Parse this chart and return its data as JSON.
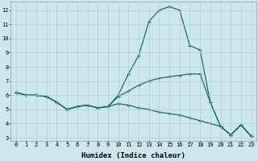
{
  "background_color": "#cde8ec",
  "grid_color": "#aacdd4",
  "line_color": "#1a6b6a",
  "marker": "+",
  "marker_size": 3,
  "marker_lw": 0.8,
  "line_width": 0.9,
  "xlabel": "Humidex (Indice chaleur)",
  "xlabel_fontsize": 6.5,
  "xlim": [
    -0.5,
    23.5
  ],
  "ylim": [
    2.8,
    12.6
  ],
  "yticks": [
    3,
    4,
    5,
    6,
    7,
    8,
    9,
    10,
    11,
    12
  ],
  "xticks": [
    0,
    1,
    2,
    3,
    4,
    5,
    6,
    7,
    8,
    9,
    10,
    11,
    12,
    13,
    14,
    15,
    16,
    17,
    18,
    19,
    20,
    21,
    22,
    23
  ],
  "tick_fontsize": 5.0,
  "series": [
    {
      "x": [
        0,
        1,
        2,
        3,
        4,
        5,
        6,
        7,
        8,
        9,
        10,
        11,
        12,
        13,
        14,
        15,
        16,
        17,
        18,
        19,
        20,
        21,
        22,
        23
      ],
      "y": [
        6.2,
        6.0,
        6.0,
        5.9,
        5.5,
        5.0,
        5.2,
        5.3,
        5.1,
        5.2,
        6.0,
        7.5,
        8.8,
        11.2,
        12.0,
        12.25,
        12.0,
        9.5,
        9.2,
        5.5,
        3.8,
        3.2,
        3.9,
        3.1
      ]
    },
    {
      "x": [
        0,
        1,
        2,
        3,
        4,
        5,
        6,
        7,
        8,
        9,
        10,
        11,
        12,
        13,
        14,
        15,
        16,
        17,
        18,
        19,
        20,
        21,
        22,
        23
      ],
      "y": [
        6.2,
        6.0,
        6.0,
        5.9,
        5.5,
        5.0,
        5.2,
        5.3,
        5.1,
        5.2,
        5.9,
        6.3,
        6.7,
        7.0,
        7.2,
        7.3,
        7.4,
        7.5,
        7.5,
        5.5,
        3.8,
        3.2,
        3.9,
        3.1
      ]
    },
    {
      "x": [
        0,
        1,
        2,
        3,
        4,
        5,
        6,
        7,
        8,
        9,
        10,
        11,
        12,
        13,
        14,
        15,
        16,
        17,
        18,
        19,
        20,
        21,
        22,
        23
      ],
      "y": [
        6.2,
        6.0,
        6.0,
        5.9,
        5.5,
        5.0,
        5.2,
        5.3,
        5.1,
        5.2,
        5.4,
        5.3,
        5.1,
        5.0,
        4.8,
        4.7,
        4.6,
        4.4,
        4.2,
        4.0,
        3.8,
        3.2,
        3.9,
        3.1
      ]
    }
  ]
}
